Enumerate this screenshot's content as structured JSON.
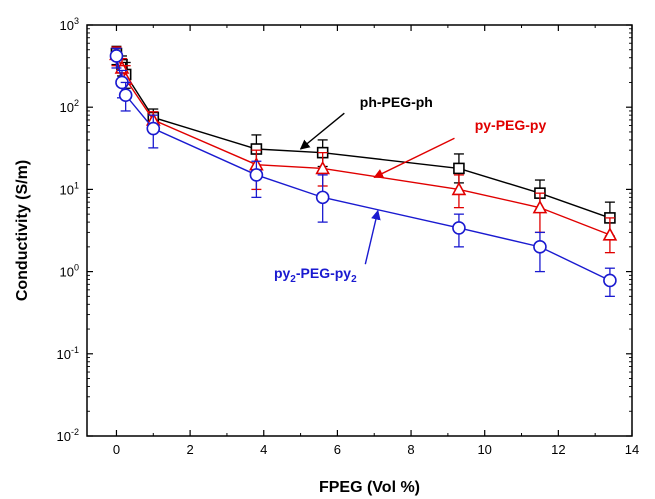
{
  "chart_data": {
    "type": "scatter",
    "xlabel": "FPEG (Vol %)",
    "ylabel": "Conductivity (S/m)",
    "xlim": [
      -0.8,
      14
    ],
    "ylim_log10": [
      -2,
      3
    ],
    "y_scale": "log",
    "grid": false,
    "x_ticks": [
      0,
      2,
      4,
      6,
      8,
      10,
      12,
      14
    ],
    "x_tick_labels": [
      "0",
      "2",
      "4",
      "6",
      "8",
      "10",
      "12",
      "14"
    ],
    "y_ticks": [
      -2,
      -1,
      0,
      1,
      2,
      3
    ],
    "y_tick_labels": [
      {
        "base": "10",
        "exp": "-2"
      },
      {
        "base": "10",
        "exp": "-1"
      },
      {
        "base": "10",
        "exp": "0"
      },
      {
        "base": "10",
        "exp": "1"
      },
      {
        "base": "10",
        "exp": "2"
      },
      {
        "base": "10",
        "exp": "3"
      }
    ],
    "series": [
      {
        "name": "ph-PEG-ph",
        "color": "#000000",
        "marker": "square",
        "x": [
          0,
          0.15,
          0.25,
          1.0,
          3.8,
          5.6,
          9.3,
          11.5,
          13.4
        ],
        "y": [
          450,
          330,
          250,
          75,
          31,
          28,
          18,
          9,
          4.5
        ],
        "y_err_low": [
          330,
          240,
          170,
          58,
          18,
          19,
          12,
          5.5,
          2.7
        ],
        "y_err_high": [
          550,
          420,
          350,
          95,
          46,
          40,
          27,
          13,
          7
        ]
      },
      {
        "name": "py-PEG-py",
        "color": "#e00000",
        "marker": "triangle",
        "x": [
          0,
          0.15,
          0.25,
          1.0,
          3.8,
          5.6,
          9.3,
          11.5,
          13.4
        ],
        "y": [
          440,
          300,
          220,
          70,
          20,
          18,
          10,
          6,
          2.8
        ],
        "y_err_low": [
          320,
          210,
          150,
          52,
          10,
          11,
          6,
          3,
          1.7
        ],
        "y_err_high": [
          540,
          390,
          320,
          88,
          30,
          28,
          15,
          9,
          4.5
        ]
      },
      {
        "name": "py₂-PEG-py₂",
        "color": "#1a1ad0",
        "marker": "circle",
        "x": [
          0,
          0.15,
          0.25,
          1.0,
          3.8,
          5.6,
          9.3,
          11.5,
          13.4
        ],
        "y": [
          420,
          200,
          140,
          55,
          15,
          8,
          3.4,
          2.0,
          0.78
        ],
        "y_err_low": [
          300,
          130,
          90,
          32,
          8,
          4,
          2,
          1,
          0.5
        ],
        "y_err_high": [
          520,
          280,
          200,
          80,
          22,
          15,
          5,
          3,
          1.1
        ]
      }
    ],
    "annotations": [
      {
        "text": "ph-PEG-ph",
        "color": "#000000",
        "x": 7.6,
        "y_log10": 2.0,
        "arrow_to_x": 5.0,
        "arrow_to_y": 31
      },
      {
        "text": "py-PEG-py",
        "color": "#e00000",
        "x": 10.7,
        "y_log10": 1.72,
        "arrow_to_x": 7.0,
        "arrow_to_y": 14
      },
      {
        "text_parts": [
          {
            "t": "py",
            "sub": false
          },
          {
            "t": "2",
            "sub": true
          },
          {
            "t": "-PEG-py",
            "sub": false
          },
          {
            "t": "2",
            "sub": true
          }
        ],
        "color": "#1a1ad0",
        "x": 5.4,
        "y_log10": -0.08,
        "arrow_to_x": 7.1,
        "arrow_to_y": 5.5
      }
    ]
  }
}
